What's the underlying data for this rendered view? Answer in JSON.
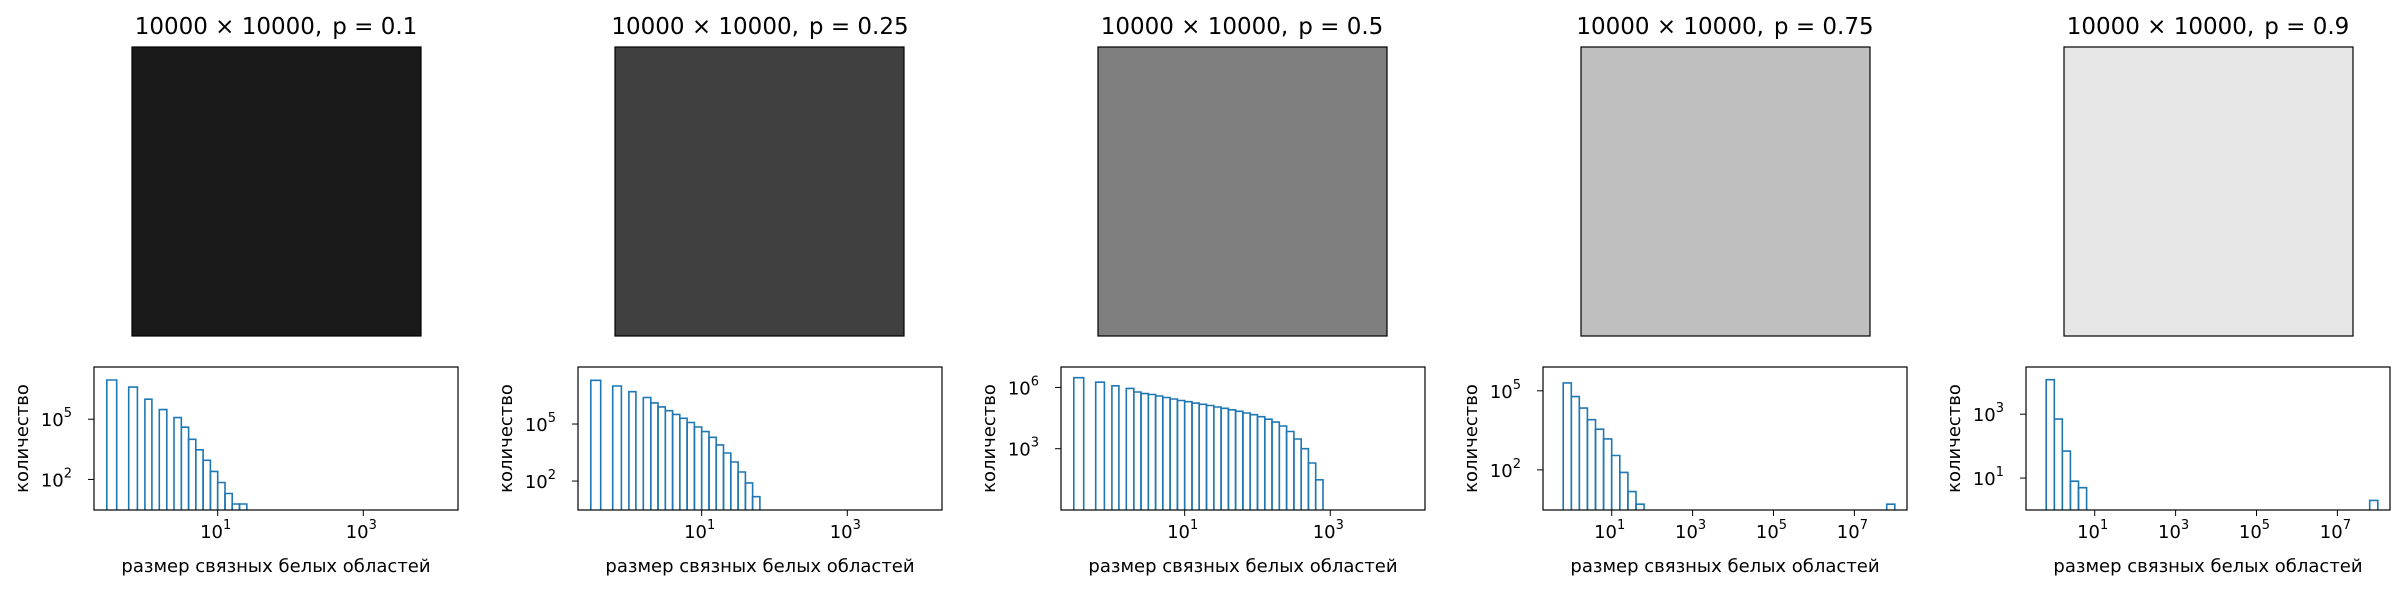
{
  "chart_data": [
    {
      "type": "heatmap",
      "panel": "image",
      "title_dims": "10000 × 10000,",
      "title_p": "p = 0.1",
      "fill_color": "#1a1a1a"
    },
    {
      "type": "heatmap",
      "panel": "image",
      "title_dims": "10000 × 10000,",
      "title_p": "p = 0.25",
      "fill_color": "#404040"
    },
    {
      "type": "heatmap",
      "panel": "image",
      "title_dims": "10000 × 10000,",
      "title_p": "p = 0.5",
      "fill_color": "#7f7f7f"
    },
    {
      "type": "heatmap",
      "panel": "image",
      "title_dims": "10000 × 10000,",
      "title_p": "p = 0.75",
      "fill_color": "#bfbfbf"
    },
    {
      "type": "heatmap",
      "panel": "image",
      "title_dims": "10000 × 10000,",
      "title_p": "p = 0.9",
      "fill_color": "#e6e6e6"
    },
    {
      "type": "histogram",
      "xlabel": "размер связных белых областей",
      "ylabel": "количество",
      "x_scale": "log",
      "y_scale": "log",
      "xlim": [
        0.2,
        20000
      ],
      "ylim": [
        3,
        40000000
      ],
      "xticks": [
        {
          "base": "10",
          "exp": "1",
          "value": 10
        },
        {
          "base": "10",
          "exp": "3",
          "value": 1000
        }
      ],
      "yticks": [
        {
          "base": "10",
          "exp": "2",
          "value": 100
        },
        {
          "base": "10",
          "exp": "5",
          "value": 100000
        }
      ],
      "series_color": "#1f77b4",
      "bins": [
        [
          0.3,
          0.41,
          9000000
        ],
        [
          0.41,
          0.6,
          0
        ],
        [
          0.6,
          0.79,
          4000000
        ],
        [
          0.79,
          1.0,
          0
        ],
        [
          1.0,
          1.25,
          1000000
        ],
        [
          1.25,
          1.58,
          0
        ],
        [
          1.58,
          2.0,
          300000
        ],
        [
          2.0,
          2.51,
          0
        ],
        [
          2.51,
          3.16,
          120000
        ],
        [
          3.16,
          3.98,
          40000
        ],
        [
          3.98,
          5.01,
          10000
        ],
        [
          5.01,
          6.31,
          3000
        ],
        [
          6.31,
          7.94,
          900
        ],
        [
          7.94,
          10.0,
          250
        ],
        [
          10.0,
          12.59,
          70
        ],
        [
          12.59,
          15.85,
          20
        ],
        [
          15.85,
          19.95,
          6
        ],
        [
          19.95,
          25.12,
          6
        ]
      ]
    },
    {
      "type": "histogram",
      "xlabel": "размер связных белых областей",
      "ylabel": "количество",
      "x_scale": "log",
      "y_scale": "log",
      "xlim": [
        0.2,
        20000
      ],
      "ylim": [
        3,
        100000000
      ],
      "xticks": [
        {
          "base": "10",
          "exp": "1",
          "value": 10
        },
        {
          "base": "10",
          "exp": "3",
          "value": 1000
        }
      ],
      "yticks": [
        {
          "base": "10",
          "exp": "2",
          "value": 100
        },
        {
          "base": "10",
          "exp": "5",
          "value": 100000
        }
      ],
      "series_color": "#1f77b4",
      "bins": [
        [
          0.3,
          0.41,
          20000000
        ],
        [
          0.41,
          0.6,
          0
        ],
        [
          0.6,
          0.79,
          10000000
        ],
        [
          0.79,
          1.0,
          0
        ],
        [
          1.0,
          1.25,
          5000000
        ],
        [
          1.25,
          1.58,
          0
        ],
        [
          1.58,
          2.0,
          2500000
        ],
        [
          2.0,
          2.51,
          1300000
        ],
        [
          2.51,
          3.16,
          800000
        ],
        [
          3.16,
          3.98,
          500000
        ],
        [
          3.98,
          5.01,
          320000
        ],
        [
          5.01,
          6.31,
          200000
        ],
        [
          6.31,
          7.94,
          120000
        ],
        [
          7.94,
          10.0,
          70000
        ],
        [
          10.0,
          12.59,
          40000
        ],
        [
          12.59,
          15.85,
          20000
        ],
        [
          15.85,
          19.95,
          8000
        ],
        [
          19.95,
          25.12,
          3000
        ],
        [
          25.12,
          31.62,
          1000
        ],
        [
          31.62,
          39.81,
          300
        ],
        [
          39.81,
          50.12,
          80
        ],
        [
          50.12,
          63.1,
          15
        ]
      ]
    },
    {
      "type": "histogram",
      "xlabel": "размер связных белых областей",
      "ylabel": "количество",
      "x_scale": "log",
      "y_scale": "log",
      "xlim": [
        0.2,
        20000
      ],
      "ylim": [
        1,
        10000000
      ],
      "xticks": [
        {
          "base": "10",
          "exp": "1",
          "value": 10
        },
        {
          "base": "10",
          "exp": "3",
          "value": 1000
        }
      ],
      "yticks": [
        {
          "base": "10",
          "exp": "3",
          "value": 1000
        },
        {
          "base": "10",
          "exp": "6",
          "value": 1000000
        }
      ],
      "series_color": "#1f77b4",
      "bins": [
        [
          0.3,
          0.41,
          3000000
        ],
        [
          0.41,
          0.6,
          0
        ],
        [
          0.6,
          0.79,
          1800000
        ],
        [
          0.79,
          1.0,
          0
        ],
        [
          1.0,
          1.25,
          1200000
        ],
        [
          1.25,
          1.58,
          0
        ],
        [
          1.58,
          2.0,
          900000
        ],
        [
          2.0,
          2.51,
          600000
        ],
        [
          2.51,
          3.16,
          500000
        ],
        [
          3.16,
          3.98,
          450000
        ],
        [
          3.98,
          5.01,
          380000
        ],
        [
          5.01,
          6.31,
          320000
        ],
        [
          6.31,
          7.94,
          270000
        ],
        [
          7.94,
          10.0,
          230000
        ],
        [
          10.0,
          12.59,
          200000
        ],
        [
          12.59,
          15.85,
          170000
        ],
        [
          15.85,
          19.95,
          150000
        ],
        [
          19.95,
          25.12,
          130000
        ],
        [
          25.12,
          31.62,
          110000
        ],
        [
          31.62,
          39.81,
          95000
        ],
        [
          39.81,
          50.12,
          80000
        ],
        [
          50.12,
          63.1,
          68000
        ],
        [
          63.1,
          79.43,
          56000
        ],
        [
          79.43,
          100.0,
          46000
        ],
        [
          100.0,
          125.9,
          37000
        ],
        [
          125.9,
          158.5,
          28000
        ],
        [
          158.5,
          199.5,
          20000
        ],
        [
          199.5,
          251.2,
          13000
        ],
        [
          251.2,
          316.2,
          7000
        ],
        [
          316.2,
          398.1,
          3000
        ],
        [
          398.1,
          501.2,
          1000
        ],
        [
          501.2,
          631.0,
          200
        ],
        [
          631.0,
          794.3,
          30
        ]
      ]
    },
    {
      "type": "histogram",
      "xlabel": "размер связных белых областей",
      "ylabel": "количество",
      "x_scale": "log",
      "y_scale": "log",
      "xlim": [
        0.2,
        200000000
      ],
      "ylim": [
        3,
        800000
      ],
      "xticks": [
        {
          "base": "10",
          "exp": "1",
          "value": 10
        },
        {
          "base": "10",
          "exp": "3",
          "value": 1000
        },
        {
          "base": "10",
          "exp": "5",
          "value": 100000
        },
        {
          "base": "10",
          "exp": "7",
          "value": 10000000
        }
      ],
      "yticks": [
        {
          "base": "10",
          "exp": "2",
          "value": 100
        },
        {
          "base": "10",
          "exp": "5",
          "value": 100000
        }
      ],
      "series_color": "#1f77b4",
      "bins": [
        [
          0.4,
          0.63,
          0
        ],
        [
          0.63,
          1.0,
          200000
        ],
        [
          1.0,
          1.58,
          60000
        ],
        [
          1.58,
          2.51,
          22000
        ],
        [
          2.51,
          3.98,
          8000
        ],
        [
          3.98,
          6.31,
          3500
        ],
        [
          6.31,
          10.0,
          1500
        ],
        [
          10.0,
          15.85,
          350
        ],
        [
          15.85,
          25.12,
          80
        ],
        [
          25.12,
          39.81,
          15
        ],
        [
          39.81,
          63.1,
          5
        ],
        [
          63000000.0,
          100000000.0,
          5
        ]
      ]
    },
    {
      "type": "histogram",
      "xlabel": "размер связных белых областей",
      "ylabel": "количество",
      "x_scale": "log",
      "y_scale": "log",
      "xlim": [
        0.2,
        200000000
      ],
      "ylim": [
        1,
        30000
      ],
      "xticks": [
        {
          "base": "10",
          "exp": "1",
          "value": 10
        },
        {
          "base": "10",
          "exp": "3",
          "value": 1000
        },
        {
          "base": "10",
          "exp": "5",
          "value": 100000
        },
        {
          "base": "10",
          "exp": "7",
          "value": 10000000
        }
      ],
      "yticks": [
        {
          "base": "10",
          "exp": "1",
          "value": 10
        },
        {
          "base": "10",
          "exp": "3",
          "value": 1000
        }
      ],
      "series_color": "#1f77b4",
      "bins": [
        [
          0.4,
          0.63,
          0
        ],
        [
          0.63,
          1.0,
          12000
        ],
        [
          1.0,
          1.58,
          700
        ],
        [
          1.58,
          2.51,
          70
        ],
        [
          2.51,
          3.98,
          8
        ],
        [
          3.98,
          6.31,
          5
        ],
        [
          63000000.0,
          100000000.0,
          2
        ]
      ]
    }
  ]
}
